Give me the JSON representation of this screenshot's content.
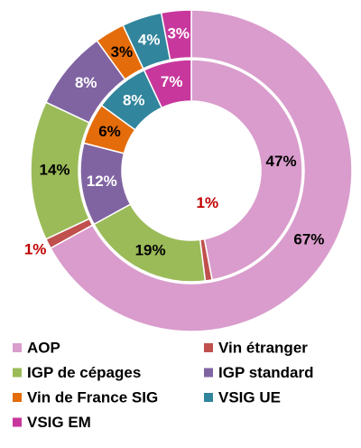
{
  "chart_data": {
    "type": "donut",
    "categories": [
      "AOP",
      "Vin étranger",
      "IGP de cépages",
      "IGP standard",
      "Vin de France SIG",
      "VSIG UE",
      "VSIG EM"
    ],
    "colors": [
      "#d99ccc",
      "#c0504d",
      "#9bbb59",
      "#8064a2",
      "#e46c0a",
      "#31859c",
      "#c7379c"
    ],
    "label_colors": [
      "#000000",
      "#c00000",
      "#000000",
      "#ffffff",
      "#000000",
      "#ffffff",
      "#ffffff"
    ],
    "series": [
      {
        "values": [
          47,
          1,
          19,
          12,
          6,
          8,
          7
        ],
        "value_labels": [
          "47%",
          "1%",
          "19%",
          "12%",
          "6%",
          "8%",
          "7%"
        ]
      },
      {
        "values": [
          67,
          1,
          14,
          8,
          3,
          4,
          3
        ],
        "value_labels": [
          "67%",
          "1%",
          "14%",
          "8%",
          "3%",
          "4%",
          "3%"
        ]
      }
    ]
  }
}
